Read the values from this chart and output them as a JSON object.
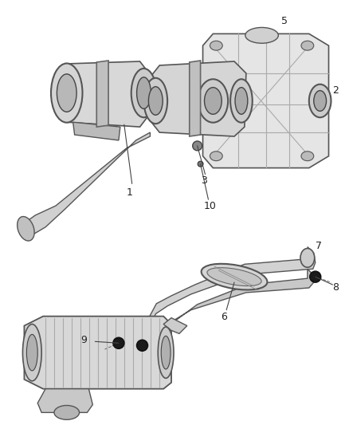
{
  "bg_color": "#ffffff",
  "line_color": "#444444",
  "label_color": "#222222",
  "fill_light": "#e0e0e0",
  "fill_mid": "#cccccc",
  "fill_dark": "#aaaaaa",
  "fill_black": "#1a1a1a"
}
